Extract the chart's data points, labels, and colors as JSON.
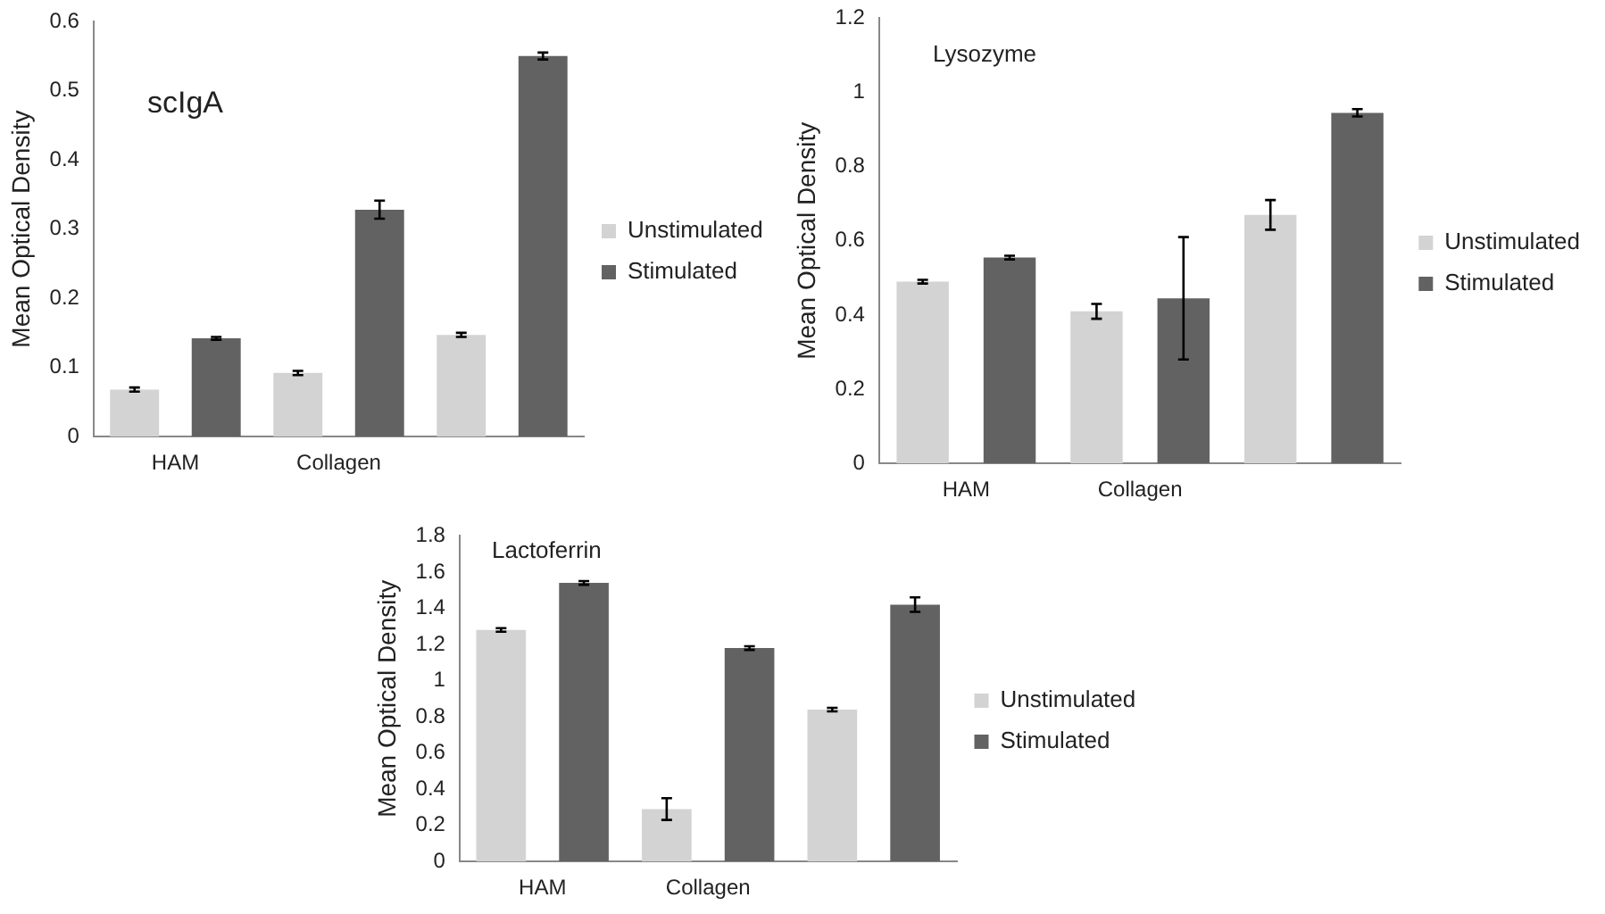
{
  "chart_data": [
    {
      "type": "bar",
      "title": "scIgA",
      "ylabel": "Mean Optical Density",
      "categories": [
        "HAM",
        "Collagen",
        null
      ],
      "series": [
        {
          "name": "Unstimulated",
          "color": "#d3d3d3",
          "values": [
            0.068,
            0.092,
            0.147
          ],
          "errors": [
            0.003,
            0.003,
            0.003
          ]
        },
        {
          "name": "Stimulated",
          "color": "#626262",
          "values": [
            0.142,
            0.328,
            0.55
          ],
          "errors": [
            0.002,
            0.013,
            0.005
          ]
        }
      ],
      "ylim": [
        0,
        0.6
      ],
      "yticks": [
        0,
        0.1,
        0.2,
        0.3,
        0.4,
        0.5,
        0.6
      ],
      "grid": false,
      "legend": "right"
    },
    {
      "type": "bar",
      "title": "Lysozyme",
      "ylabel": "Mean Optical Density",
      "categories": [
        "HAM",
        "Collagen",
        null
      ],
      "series": [
        {
          "name": "Unstimulated",
          "color": "#d3d3d3",
          "values": [
            0.49,
            0.41,
            0.67
          ],
          "errors": [
            0.005,
            0.02,
            0.04
          ]
        },
        {
          "name": "Stimulated",
          "color": "#626262",
          "values": [
            0.555,
            0.445,
            0.945
          ],
          "errors": [
            0.005,
            0.165,
            0.01
          ]
        }
      ],
      "ylim": [
        0,
        1.2
      ],
      "yticks": [
        0,
        0.2,
        0.4,
        0.6,
        0.8,
        1,
        1.2
      ],
      "grid": false,
      "legend": "right"
    },
    {
      "type": "bar",
      "title": "Lactoferrin",
      "ylabel": "Mean Optical Density",
      "categories": [
        "HAM",
        "Collagen",
        null
      ],
      "series": [
        {
          "name": "Unstimulated",
          "color": "#d3d3d3",
          "values": [
            1.28,
            0.29,
            0.84
          ],
          "errors": [
            0.01,
            0.06,
            0.01
          ]
        },
        {
          "name": "Stimulated",
          "color": "#626262",
          "values": [
            1.54,
            1.18,
            1.42
          ],
          "errors": [
            0.01,
            0.01,
            0.04
          ]
        }
      ],
      "ylim": [
        0,
        1.8
      ],
      "yticks": [
        0,
        0.2,
        0.4,
        0.6,
        0.8,
        1,
        1.2,
        1.4,
        1.6,
        1.8
      ],
      "grid": false,
      "legend": "right"
    }
  ]
}
